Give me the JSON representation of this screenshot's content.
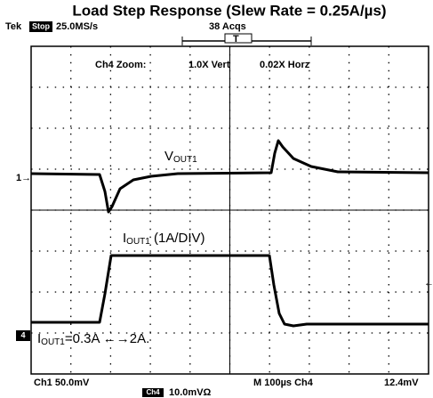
{
  "title": "Load Step Response (Slew Rate = 0.25A/µs)",
  "header": {
    "brand": "Tek",
    "state": "Stop",
    "rate": "25.0MS/s",
    "acqs": "38 Acqs",
    "trigger": "T"
  },
  "zoom": {
    "label": "Ch4 Zoom:",
    "vert": "1.0X Vert",
    "horz": "0.02X Horz"
  },
  "traces": {
    "vout": {
      "main": "V",
      "sub": "OUT1"
    },
    "iout": {
      "main": "I",
      "sub": "OUT1",
      "rest": " (1A/DIV)"
    },
    "step": {
      "main": "I",
      "sub": "OUT1",
      "rest": "=0.3A ←→2A."
    }
  },
  "markers": {
    "ch1": "1→",
    "ch4": "4",
    "trig": "←"
  },
  "footer": {
    "ch1": "Ch1  50.0mV",
    "time": "M 100µs  Ch4",
    "level": "12.4mV",
    "ch4": "Ch4",
    "ch4scale": "10.0mVΩ"
  }
}
